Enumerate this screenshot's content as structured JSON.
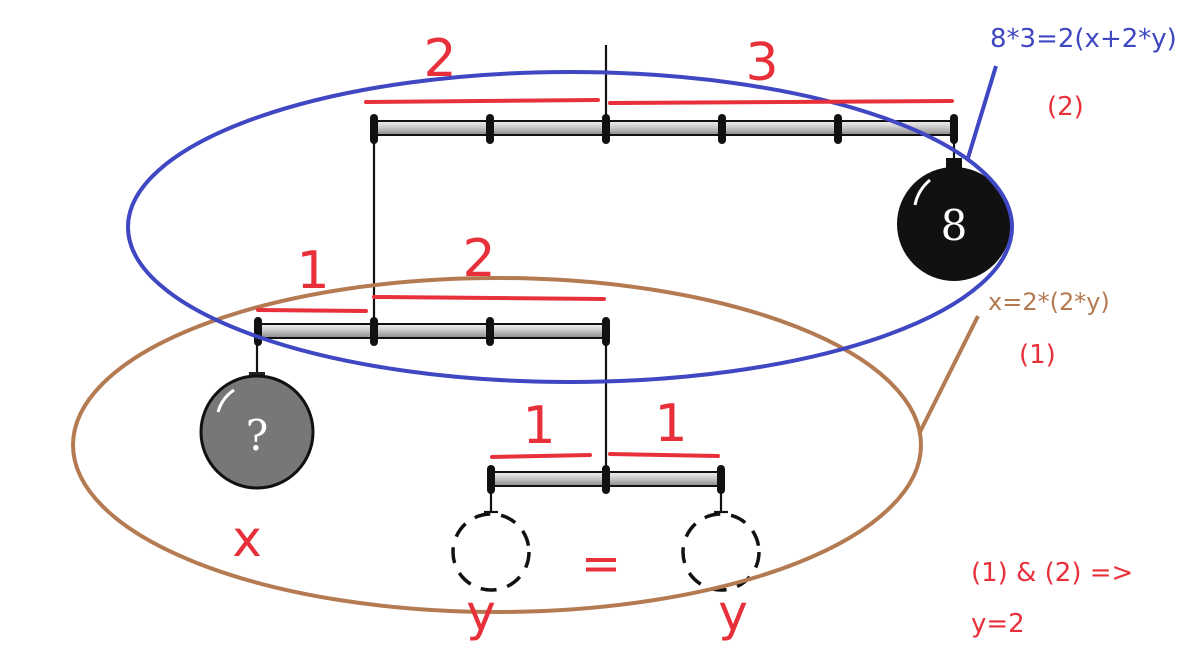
{
  "diagram": {
    "top_beam": {
      "left_arm": "2",
      "right_arm": "3"
    },
    "middle_beam": {
      "left_arm": "1",
      "right_arm": "2"
    },
    "bottom_beam": {
      "left_arm": "1",
      "right_arm": "1"
    },
    "weights": {
      "known_bomb": "8",
      "unknown_bomb": "?",
      "unknown_label": "x",
      "left_circle_label": "y",
      "right_circle_label": "y",
      "equals_sign": "="
    },
    "equations": {
      "eq2_text": "8*3=2(x+2*y)",
      "eq2_tag": "(2)",
      "eq1_text": "x=2*(2*y)",
      "eq1_tag": "(1)",
      "conclusion_line1": "(1) & (2) =>",
      "conclusion_line2": "y=2"
    },
    "colors": {
      "annotation_red": "#e8303a",
      "ellipse_blue": "#3f47c2",
      "ellipse_brown": "#b47a52",
      "beam_gray": "#c8c8c8",
      "bomb_black": "#111111",
      "bomb_gray": "#777777"
    }
  }
}
